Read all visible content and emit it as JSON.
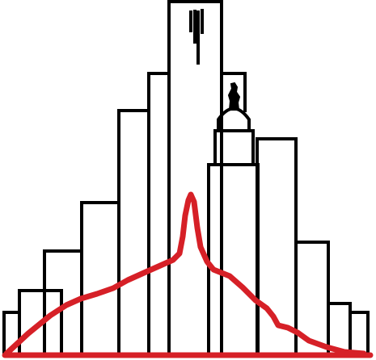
{
  "colors": {
    "background": "#ffffff",
    "building_stroke": "#000000",
    "mountain_stroke": "#d62027"
  }
}
